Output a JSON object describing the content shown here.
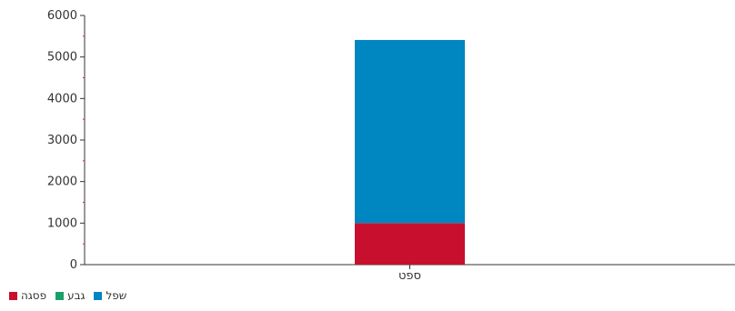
{
  "chart_data": {
    "type": "bar",
    "stacked": true,
    "categories": [
      "ספט"
    ],
    "series": [
      {
        "name": "פסגה",
        "color": "#c8102e",
        "values": [
          1000
        ]
      },
      {
        "name": "גבע",
        "color": "#1a9e6a",
        "values": [
          0
        ]
      },
      {
        "name": "שפל",
        "color": "#0086c0",
        "values": [
          4410
        ]
      }
    ],
    "ylim": [
      0,
      6000
    ],
    "yticks": [
      "0",
      "1000",
      "2000",
      "3000",
      "4000",
      "5000",
      "6000"
    ],
    "title": "",
    "xlabel": "",
    "ylabel": "",
    "grid": false,
    "legend_position": "bottom-left"
  }
}
